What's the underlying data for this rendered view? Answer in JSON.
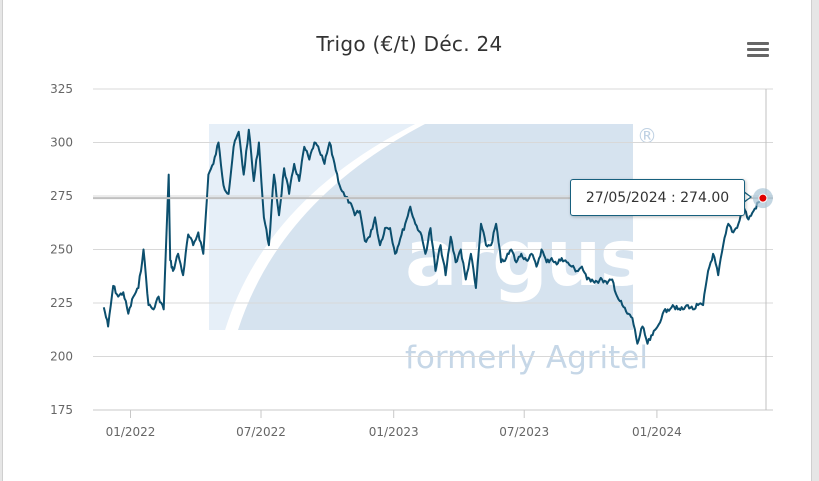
{
  "chart_data": {
    "type": "line",
    "title": "Trigo (€/t) Déc. 24",
    "ylim": [
      175,
      325
    ],
    "yticks": [
      175,
      200,
      225,
      250,
      275,
      300,
      325
    ],
    "xlim": [
      "2021-11-10",
      "2024-06-10"
    ],
    "xticks": [
      {
        "date": "2022-01-01",
        "label": "01/2022"
      },
      {
        "date": "2022-07-01",
        "label": "07/2022"
      },
      {
        "date": "2023-01-01",
        "label": "01/2023"
      },
      {
        "date": "2023-07-01",
        "label": "07/2023"
      },
      {
        "date": "2024-01-01",
        "label": "01/2024"
      }
    ],
    "grid": true,
    "series": [
      {
        "color": "#0c4f6e",
        "x": [
          "2021-11-25",
          "2021-12-01",
          "2021-12-08",
          "2021-12-15",
          "2021-12-22",
          "2021-12-29",
          "2022-01-05",
          "2022-01-12",
          "2022-01-19",
          "2022-01-26",
          "2022-02-02",
          "2022-02-09",
          "2022-02-16",
          "2022-02-23",
          "2022-02-25",
          "2022-03-01",
          "2022-03-08",
          "2022-03-15",
          "2022-03-22",
          "2022-03-29",
          "2022-04-05",
          "2022-04-12",
          "2022-04-19",
          "2022-04-26",
          "2022-05-03",
          "2022-05-10",
          "2022-05-17",
          "2022-05-24",
          "2022-05-31",
          "2022-06-07",
          "2022-06-14",
          "2022-06-21",
          "2022-06-28",
          "2022-07-05",
          "2022-07-12",
          "2022-07-19",
          "2022-07-26",
          "2022-08-02",
          "2022-08-09",
          "2022-08-16",
          "2022-08-23",
          "2022-08-30",
          "2022-09-06",
          "2022-09-13",
          "2022-09-20",
          "2022-09-27",
          "2022-10-04",
          "2022-10-11",
          "2022-10-18",
          "2022-10-25",
          "2022-11-01",
          "2022-11-08",
          "2022-11-15",
          "2022-11-22",
          "2022-11-29",
          "2022-12-06",
          "2022-12-13",
          "2022-12-20",
          "2022-12-27",
          "2023-01-03",
          "2023-01-10",
          "2023-01-17",
          "2023-01-24",
          "2023-01-31",
          "2023-02-07",
          "2023-02-14",
          "2023-02-21",
          "2023-02-28",
          "2023-03-07",
          "2023-03-14",
          "2023-03-21",
          "2023-03-28",
          "2023-04-04",
          "2023-04-11",
          "2023-04-18",
          "2023-04-25",
          "2023-05-02",
          "2023-05-09",
          "2023-05-16",
          "2023-05-23",
          "2023-05-30",
          "2023-06-06",
          "2023-06-13",
          "2023-06-20",
          "2023-06-27",
          "2023-07-04",
          "2023-07-11",
          "2023-07-18",
          "2023-07-25",
          "2023-08-01",
          "2023-08-08",
          "2023-08-15",
          "2023-08-22",
          "2023-08-29",
          "2023-09-05",
          "2023-09-12",
          "2023-09-19",
          "2023-09-26",
          "2023-10-03",
          "2023-10-10",
          "2023-10-17",
          "2023-10-24",
          "2023-10-31",
          "2023-11-07",
          "2023-11-14",
          "2023-11-21",
          "2023-11-28",
          "2023-12-05",
          "2023-12-12",
          "2023-12-19",
          "2023-12-26",
          "2024-01-02",
          "2024-01-09",
          "2024-01-16",
          "2024-01-23",
          "2024-01-30",
          "2024-02-06",
          "2024-02-13",
          "2024-02-20",
          "2024-02-27",
          "2024-03-05",
          "2024-03-12",
          "2024-03-19",
          "2024-03-26",
          "2024-04-02",
          "2024-04-09",
          "2024-04-16",
          "2024-04-23",
          "2024-04-30",
          "2024-05-07",
          "2024-05-14",
          "2024-05-21",
          "2024-05-27"
        ],
        "values": [
          223,
          214,
          233,
          228,
          230,
          220,
          228,
          232,
          250,
          224,
          222,
          228,
          222,
          285,
          245,
          240,
          248,
          238,
          257,
          252,
          258,
          248,
          285,
          290,
          300,
          280,
          276,
          298,
          305,
          285,
          306,
          282,
          300,
          265,
          252,
          285,
          266,
          288,
          276,
          290,
          282,
          298,
          292,
          300,
          296,
          290,
          300,
          290,
          280,
          275,
          272,
          266,
          268,
          254,
          256,
          265,
          252,
          260,
          260,
          248,
          255,
          262,
          270,
          262,
          258,
          248,
          260,
          240,
          252,
          238,
          256,
          244,
          250,
          236,
          248,
          232,
          262,
          252,
          252,
          262,
          244,
          246,
          250,
          244,
          248,
          245,
          248,
          242,
          250,
          244,
          246,
          243,
          246,
          244,
          242,
          240,
          242,
          236,
          236,
          235,
          236,
          234,
          236,
          228,
          224,
          220,
          218,
          206,
          214,
          206,
          210,
          214,
          220,
          222,
          224,
          222,
          222,
          224,
          222,
          224,
          224,
          240,
          248,
          238,
          252,
          262,
          258,
          262,
          270,
          264,
          268,
          272,
          274
        ]
      }
    ],
    "annotations": [
      {
        "label": "27/05/2024 : 274.00",
        "date": "2024-05-27",
        "value": 274.0
      }
    ],
    "watermark": {
      "logo": "argus",
      "caption": "formerly Agritel",
      "mark": "®"
    }
  },
  "colors": {
    "line": "#0c4f6e",
    "grid": "#d8d8d8",
    "crosshair": "#c0c0c0",
    "marker": "#e00000"
  },
  "toolbar": {
    "menu_icon": "hamburger-menu-icon"
  }
}
